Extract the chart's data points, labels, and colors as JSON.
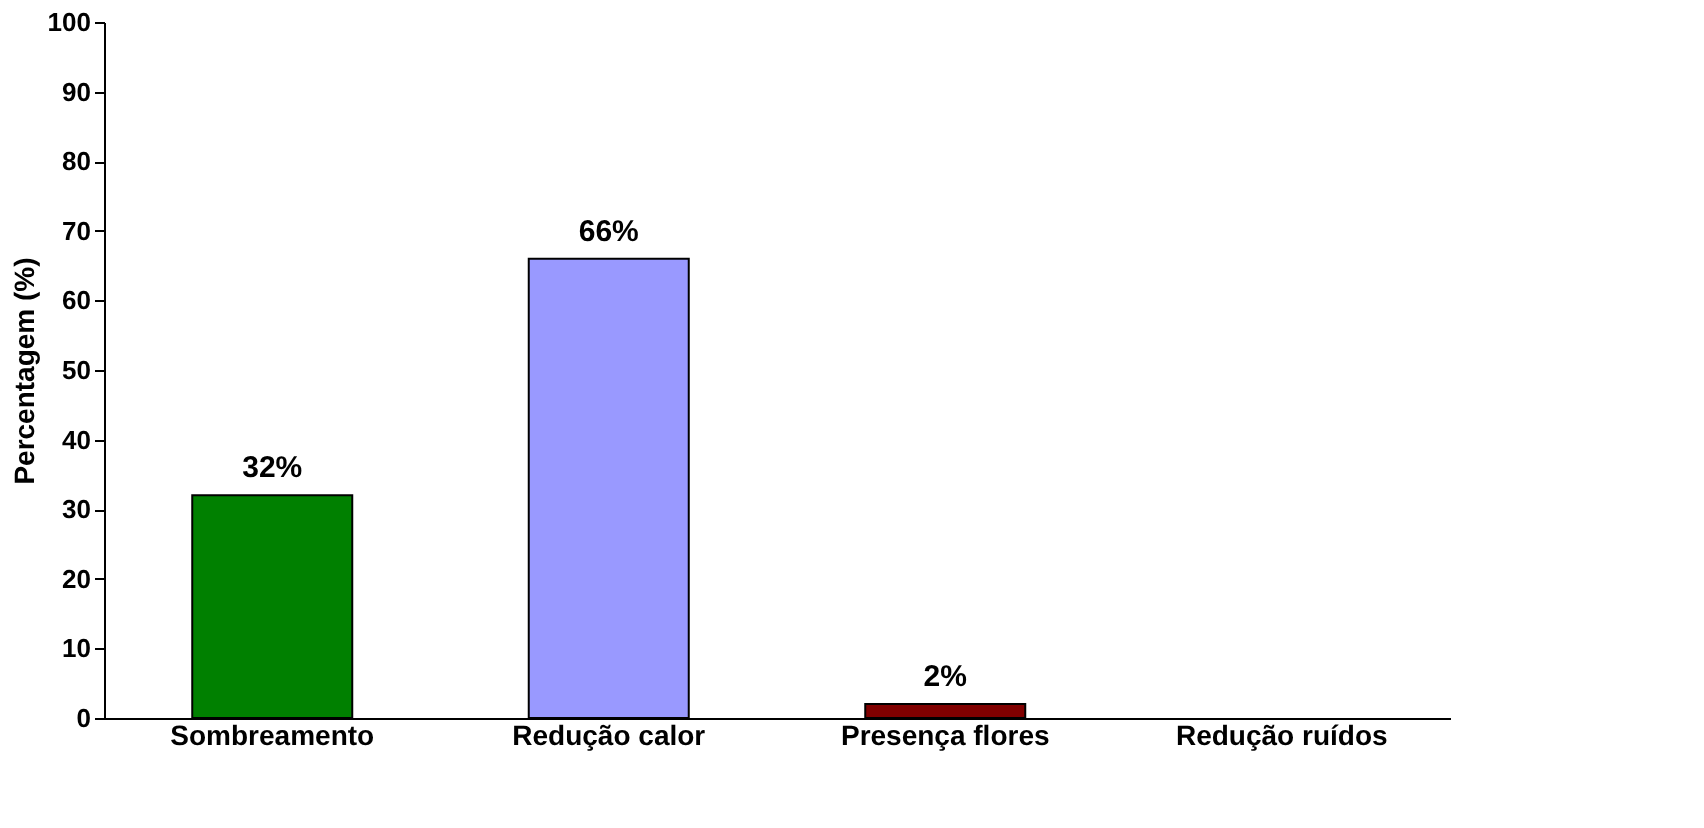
{
  "chart_data": {
    "type": "bar",
    "ylabel": "Percentagem (%)",
    "categories": [
      "Sombreamento",
      "Redução calor",
      "Presença flores",
      "Redução ruídos"
    ],
    "values": [
      32,
      66,
      2,
      null
    ],
    "colors": [
      "#008000",
      "#9999ff",
      "#800000",
      "#c0c0c0"
    ],
    "value_labels": [
      "32%",
      "66%",
      "2%",
      null
    ],
    "ylim": [
      0,
      100
    ],
    "yticks": [
      0,
      10,
      20,
      30,
      40,
      50,
      60,
      70,
      80,
      90,
      100
    ],
    "grid": false
  }
}
